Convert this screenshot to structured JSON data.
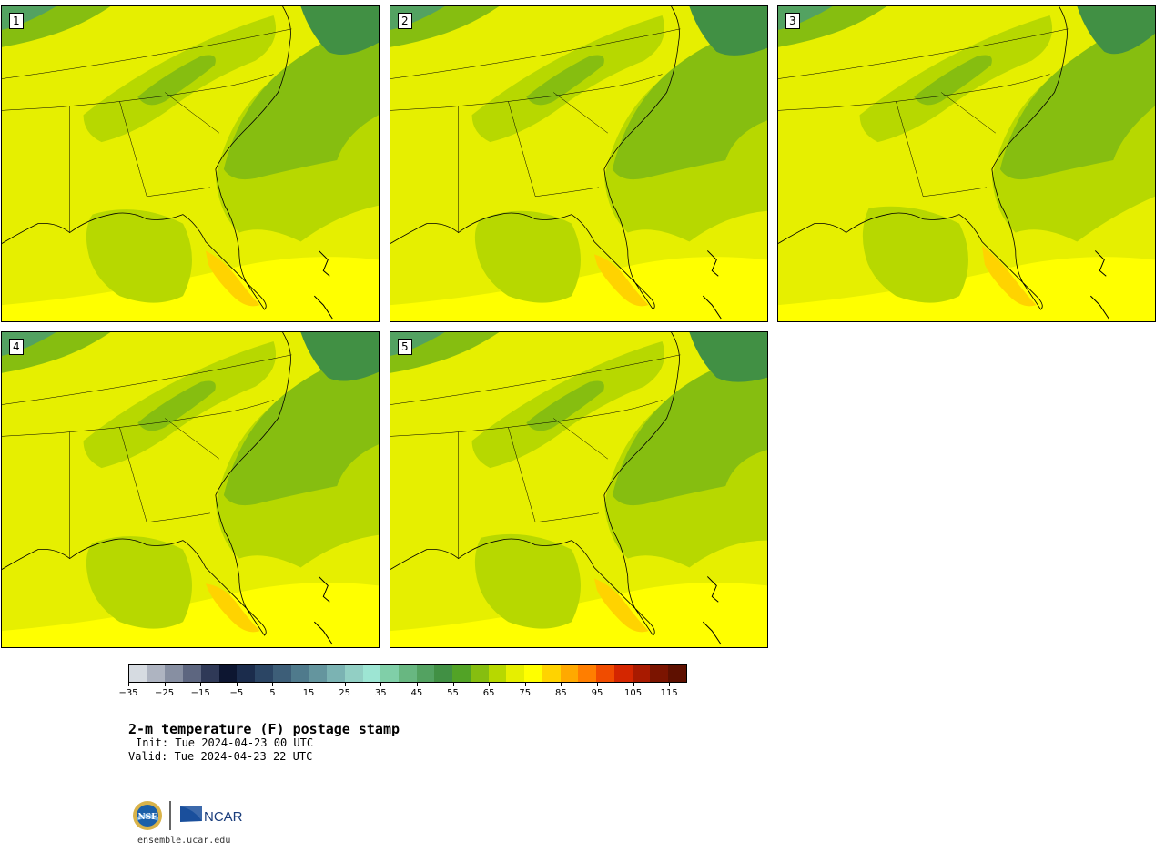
{
  "panels": [
    {
      "label": "1"
    },
    {
      "label": "2"
    },
    {
      "label": "3"
    },
    {
      "label": "4"
    },
    {
      "label": "5"
    }
  ],
  "colorbar": {
    "colors": [
      "#d6dbe1",
      "#aeb4c1",
      "#878fa2",
      "#5d6680",
      "#2f3957",
      "#0d1631",
      "#1b2c4c",
      "#2b4564",
      "#3d5e78",
      "#4f7a8c",
      "#64959e",
      "#7bb3b3",
      "#92cfc4",
      "#9de5d3",
      "#80cfa8",
      "#68b781",
      "#53a261",
      "#419044",
      "#52a326",
      "#86be10",
      "#b7d800",
      "#e6ef00",
      "#ffff00",
      "#ffd300",
      "#ffa900",
      "#ff7e00",
      "#f04c00",
      "#d42600",
      "#a81a00",
      "#7b1400",
      "#5e1000"
    ],
    "tick_labels": [
      "−35",
      "−25",
      "−15",
      "−5",
      "5",
      "15",
      "25",
      "35",
      "45",
      "55",
      "65",
      "75",
      "85",
      "95",
      "105",
      "115"
    ]
  },
  "title": "2-m temperature (F) postage stamp",
  "init": "Init: Tue 2024-04-23 00 UTC",
  "valid": "Valid: Tue 2024-04-23 22 UTC",
  "logos": {
    "nsf": "NSF",
    "ncar": "NCAR"
  },
  "url": "ensemble.ucar.edu"
}
